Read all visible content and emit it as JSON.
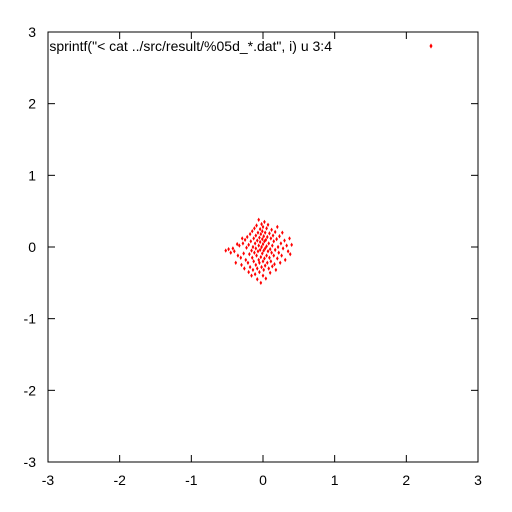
{
  "chart_data": {
    "type": "scatter",
    "title": "",
    "xlabel": "",
    "ylabel": "",
    "xlim": [
      -3,
      3
    ],
    "ylim": [
      -3,
      3
    ],
    "xticks": [
      "-3",
      "-2",
      "-1",
      "0",
      "1",
      "2",
      "3"
    ],
    "yticks": [
      "-3",
      "-2",
      "-1",
      "0",
      "1",
      "2",
      "3"
    ],
    "grid": false,
    "legend_position": "top-right",
    "series": [
      {
        "name": "sprintf(\"< cat ../src/result/%05d_*.dat\", i) u 3:4",
        "color": "#ff0000",
        "marker": "small-diamond",
        "points": [
          [
            -0.52,
            -0.05
          ],
          [
            -0.48,
            -0.03
          ],
          [
            -0.45,
            -0.08
          ],
          [
            -0.42,
            -0.02
          ],
          [
            -0.4,
            -0.06
          ],
          [
            -0.38,
            -0.22
          ],
          [
            -0.35,
            -0.12
          ],
          [
            -0.33,
            0.02
          ],
          [
            -0.31,
            -0.15
          ],
          [
            -0.3,
            -0.25
          ],
          [
            -0.28,
            0.05
          ],
          [
            -0.27,
            -0.09
          ],
          [
            -0.26,
            -0.3
          ],
          [
            -0.25,
            0.1
          ],
          [
            -0.24,
            -0.18
          ],
          [
            -0.23,
            -0.01
          ],
          [
            -0.22,
            0.14
          ],
          [
            -0.21,
            -0.22
          ],
          [
            -0.2,
            0.03
          ],
          [
            -0.2,
            -0.35
          ],
          [
            -0.19,
            -0.1
          ],
          [
            -0.18,
            0.18
          ],
          [
            -0.18,
            -0.28
          ],
          [
            -0.17,
            0.08
          ],
          [
            -0.16,
            -0.05
          ],
          [
            -0.16,
            -0.4
          ],
          [
            -0.15,
            0.22
          ],
          [
            -0.15,
            -0.15
          ],
          [
            -0.14,
            0.0
          ],
          [
            -0.14,
            -0.32
          ],
          [
            -0.13,
            0.12
          ],
          [
            -0.13,
            -0.2
          ],
          [
            -0.12,
            0.26
          ],
          [
            -0.12,
            -0.08
          ],
          [
            -0.11,
            0.05
          ],
          [
            -0.11,
            -0.38
          ],
          [
            -0.1,
            0.16
          ],
          [
            -0.1,
            -0.25
          ],
          [
            -0.1,
            -0.02
          ],
          [
            -0.09,
            0.3
          ],
          [
            -0.09,
            -0.12
          ],
          [
            -0.08,
            0.09
          ],
          [
            -0.08,
            -0.45
          ],
          [
            -0.08,
            -0.3
          ],
          [
            -0.07,
            0.2
          ],
          [
            -0.07,
            -0.06
          ],
          [
            -0.06,
            0.38
          ],
          [
            -0.06,
            -0.18
          ],
          [
            -0.06,
            0.02
          ],
          [
            -0.05,
            0.13
          ],
          [
            -0.05,
            -0.35
          ],
          [
            -0.05,
            -0.22
          ],
          [
            -0.04,
            0.25
          ],
          [
            -0.04,
            -0.04
          ],
          [
            -0.04,
            0.07
          ],
          [
            -0.03,
            -0.5
          ],
          [
            -0.03,
            0.18
          ],
          [
            -0.03,
            -0.14
          ],
          [
            -0.02,
            0.32
          ],
          [
            -0.02,
            -0.28
          ],
          [
            -0.02,
            0.0
          ],
          [
            -0.01,
            0.11
          ],
          [
            -0.01,
            -0.09
          ],
          [
            -0.01,
            0.22
          ],
          [
            0.0,
            -0.4
          ],
          [
            0.0,
            0.04
          ],
          [
            0.0,
            -0.2
          ],
          [
            0.0,
            0.28
          ],
          [
            0.01,
            -0.05
          ],
          [
            0.01,
            0.15
          ],
          [
            0.01,
            -0.32
          ],
          [
            0.02,
            0.08
          ],
          [
            0.02,
            -0.16
          ],
          [
            0.02,
            0.35
          ],
          [
            0.03,
            -0.02
          ],
          [
            0.03,
            0.2
          ],
          [
            0.03,
            -0.26
          ],
          [
            0.04,
            0.1
          ],
          [
            0.04,
            -0.44
          ],
          [
            0.05,
            0.01
          ],
          [
            0.05,
            -0.12
          ],
          [
            0.05,
            0.26
          ],
          [
            0.06,
            -0.22
          ],
          [
            0.06,
            0.14
          ],
          [
            0.07,
            -0.06
          ],
          [
            0.07,
            0.31
          ],
          [
            0.08,
            -0.3
          ],
          [
            0.08,
            0.05
          ],
          [
            0.09,
            -0.15
          ],
          [
            0.09,
            0.19
          ],
          [
            0.1,
            -0.03
          ],
          [
            0.1,
            -0.36
          ],
          [
            0.11,
            0.12
          ],
          [
            0.11,
            -0.2
          ],
          [
            0.12,
            0.24
          ],
          [
            0.12,
            -0.08
          ],
          [
            0.13,
            0.02
          ],
          [
            0.13,
            -0.27
          ],
          [
            0.14,
            0.16
          ],
          [
            0.15,
            -0.12
          ],
          [
            0.15,
            0.08
          ],
          [
            0.16,
            -0.24
          ],
          [
            0.17,
            0.21
          ],
          [
            0.17,
            -0.04
          ],
          [
            0.18,
            -0.32
          ],
          [
            0.19,
            0.11
          ],
          [
            0.2,
            -0.16
          ],
          [
            0.2,
            0.28
          ],
          [
            0.21,
            0.0
          ],
          [
            0.22,
            -0.08
          ],
          [
            0.23,
            0.15
          ],
          [
            0.24,
            -0.22
          ],
          [
            0.25,
            0.05
          ],
          [
            0.26,
            -0.12
          ],
          [
            0.27,
            0.2
          ],
          [
            0.28,
            -0.02
          ],
          [
            0.3,
            0.09
          ],
          [
            0.31,
            -0.18
          ],
          [
            0.33,
            0.02
          ],
          [
            0.35,
            -0.06
          ],
          [
            0.37,
            0.12
          ],
          [
            0.38,
            -0.1
          ],
          [
            0.4,
            0.03
          ],
          [
            -0.36,
            0.04
          ],
          [
            -0.29,
            0.12
          ]
        ]
      }
    ]
  }
}
